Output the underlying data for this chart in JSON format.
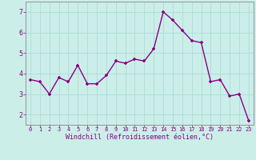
{
  "x": [
    0,
    1,
    2,
    3,
    4,
    5,
    6,
    7,
    8,
    9,
    10,
    11,
    12,
    13,
    14,
    15,
    16,
    17,
    18,
    19,
    20,
    21,
    22,
    23
  ],
  "y": [
    3.7,
    3.6,
    3.0,
    3.8,
    3.6,
    4.4,
    3.5,
    3.5,
    3.9,
    4.6,
    4.5,
    4.7,
    4.6,
    5.2,
    7.0,
    6.6,
    6.1,
    5.6,
    5.5,
    3.6,
    3.7,
    2.9,
    3.0,
    1.7
  ],
  "line_color": "#880088",
  "marker": "+",
  "marker_size": 3,
  "line_width": 1.0,
  "bg_color": "#cceee8",
  "grid_color": "#aadddd",
  "xlabel": "Windchill (Refroidissement éolien,°C)",
  "xlabel_color": "#880088",
  "tick_color": "#880088",
  "axis_color": "#888888",
  "ylim": [
    1.5,
    7.5
  ],
  "xlim": [
    -0.5,
    23.5
  ],
  "yticks": [
    2,
    3,
    4,
    5,
    6,
    7
  ],
  "xticks": [
    0,
    1,
    2,
    3,
    4,
    5,
    6,
    7,
    8,
    9,
    10,
    11,
    12,
    13,
    14,
    15,
    16,
    17,
    18,
    19,
    20,
    21,
    22,
    23
  ]
}
